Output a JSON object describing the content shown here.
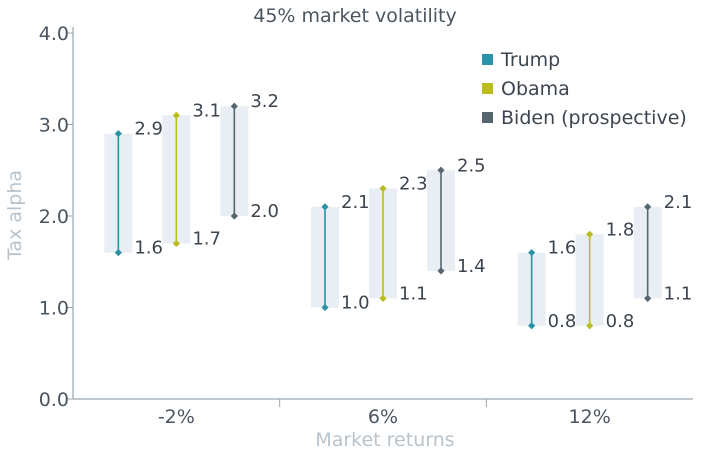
{
  "chart_data": {
    "type": "range",
    "title": "45% market volatility",
    "xlabel": "Market returns",
    "ylabel": "Tax alpha",
    "ylim": [
      0,
      4
    ],
    "yticks": [
      "0.0",
      "1.0",
      "2.0",
      "3.0",
      "4.0"
    ],
    "categories": [
      "-2%",
      "6%",
      "12%"
    ],
    "legend_position": "top-right",
    "series": [
      {
        "name": "Trump",
        "color": "#2a93a8",
        "low": [
          1.6,
          1.0,
          0.8
        ],
        "high": [
          2.9,
          2.1,
          1.6
        ],
        "low_labels": [
          "1.6",
          "1.0",
          "0.8"
        ],
        "high_labels": [
          "2.9",
          "2.1",
          "1.6"
        ]
      },
      {
        "name": "Obama",
        "color": "#b9be1e",
        "low": [
          1.7,
          1.1,
          0.8
        ],
        "high": [
          3.1,
          2.3,
          1.8
        ],
        "low_labels": [
          "1.7",
          "1.1",
          "0.8"
        ],
        "high_labels": [
          "3.1",
          "2.3",
          "1.8"
        ]
      },
      {
        "name": "Biden (prospective)",
        "color": "#56666f",
        "low": [
          2.0,
          1.4,
          1.1
        ],
        "high": [
          3.2,
          2.5,
          2.1
        ],
        "low_labels": [
          "2.0",
          "1.4",
          "1.1"
        ],
        "high_labels": [
          "3.2",
          "2.5",
          "2.1"
        ]
      }
    ]
  }
}
